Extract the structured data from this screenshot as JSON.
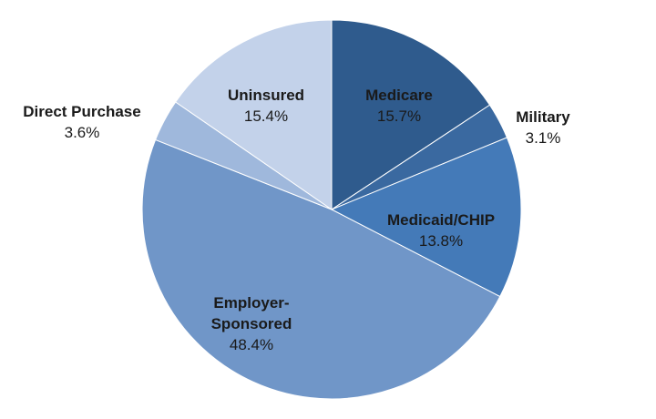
{
  "chart_data": {
    "type": "pie",
    "start_angle_deg": 90,
    "direction": "clockwise",
    "slices": [
      {
        "name": "Medicare",
        "name_lines": [
          "Medicare"
        ],
        "value": 15.7,
        "label": "15.7%",
        "color": "#2f5b8d"
      },
      {
        "name": "Military",
        "name_lines": [
          "Military"
        ],
        "value": 3.1,
        "label": "3.1%",
        "color": "#3a69a0"
      },
      {
        "name": "Medicaid/CHIP",
        "name_lines": [
          "Medicaid/CHIP"
        ],
        "value": 13.8,
        "label": "13.8%",
        "color": "#447ab8"
      },
      {
        "name": "Employer-Sponsored",
        "name_lines": [
          "Employer-",
          "Sponsored"
        ],
        "value": 48.4,
        "label": "48.4%",
        "color": "#7096c8"
      },
      {
        "name": "Direct Purchase",
        "name_lines": [
          "Direct Purchase"
        ],
        "value": 3.6,
        "label": "3.6%",
        "color": "#9fb8dc"
      },
      {
        "name": "Uninsured",
        "name_lines": [
          "Uninsured"
        ],
        "value": 15.4,
        "label": "15.4%",
        "color": "#c3d2ea"
      }
    ],
    "label_colors": {
      "inside": "#1a1a1a",
      "outside": "#1a1a1a"
    }
  }
}
